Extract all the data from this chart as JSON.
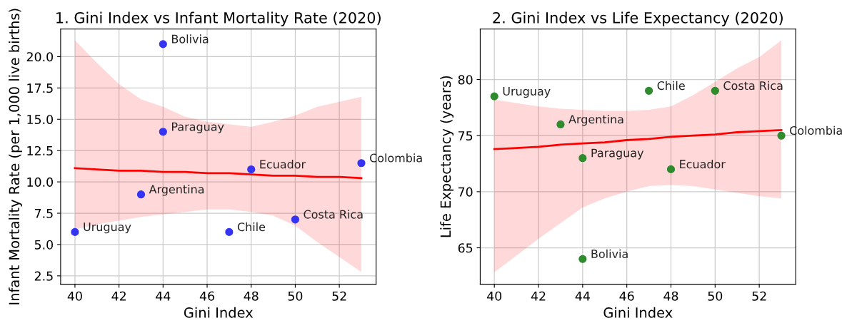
{
  "chart_data": [
    {
      "type": "scatter",
      "title": "1. Gini Index vs Infant Mortality Rate (2020)",
      "xlabel": "Gini Index",
      "ylabel": "Infant Mortality Rate (per 1,000 live births)",
      "xlim": [
        39.35,
        53.67
      ],
      "xticks": [
        40,
        42,
        44,
        46,
        48,
        50,
        52
      ],
      "ylim": [
        1.83,
        22.2
      ],
      "yticks": [
        {
          "value": 2.5,
          "label": "2.5"
        },
        {
          "value": 5,
          "label": "5.0"
        },
        {
          "value": 7.5,
          "label": "7.5"
        },
        {
          "value": 10,
          "label": "10.0"
        },
        {
          "value": 12.5,
          "label": "12.5"
        },
        {
          "value": 15,
          "label": "15.0"
        },
        {
          "value": 17.5,
          "label": "17.5"
        },
        {
          "value": 20,
          "label": "20.0"
        }
      ],
      "grid": true,
      "marker": "circle",
      "series": [
        {
          "color": "#3434f2",
          "x": [
            40,
            43,
            44,
            44,
            47,
            48,
            50,
            53
          ],
          "values": [
            6,
            9,
            21,
            14,
            6,
            11,
            7,
            11.5
          ]
        },
        {
          "type": "line",
          "color": "#ff0000",
          "marker": "none",
          "x": [
            40,
            41,
            42,
            43,
            44,
            45,
            46,
            47,
            48,
            49,
            50,
            51,
            52,
            53
          ],
          "values": [
            11.1,
            11.0,
            10.9,
            10.9,
            10.8,
            10.8,
            10.7,
            10.7,
            10.6,
            10.5,
            10.5,
            10.4,
            10.4,
            10.3
          ],
          "upper": [
            21.3,
            19.5,
            17.8,
            16.6,
            16.0,
            15.2,
            14.8,
            14.6,
            14.4,
            14.8,
            15.3,
            16.0,
            16.4,
            16.8
          ],
          "lower": [
            6.2,
            6.6,
            6.9,
            7.2,
            7.4,
            7.6,
            7.8,
            7.8,
            7.6,
            7.3,
            6.5,
            5.2,
            4.0,
            2.8
          ]
        }
      ],
      "annotations": [
        {
          "text": "Uruguay",
          "x": 40,
          "y": 6
        },
        {
          "text": "Argentina",
          "x": 43,
          "y": 9
        },
        {
          "text": "Bolivia",
          "x": 44,
          "y": 21
        },
        {
          "text": "Paraguay",
          "x": 44,
          "y": 14
        },
        {
          "text": "Chile",
          "x": 47,
          "y": 6
        },
        {
          "text": "Ecuador",
          "x": 48,
          "y": 11
        },
        {
          "text": "Costa Rica",
          "x": 50,
          "y": 7
        },
        {
          "text": "Colombia",
          "x": 53,
          "y": 11.5
        }
      ]
    },
    {
      "type": "scatter",
      "title": "2. Gini Index vs Life Expectancy (2020)",
      "xlabel": "Gini Index",
      "ylabel": "Life Expectancy (years)",
      "xlim": [
        39.36,
        53.65
      ],
      "xticks": [
        40,
        42,
        44,
        46,
        48,
        50,
        52
      ],
      "ylim": [
        61.75,
        84.5
      ],
      "yticks": [
        65,
        70,
        75,
        80
      ],
      "grid": true,
      "marker": "circle",
      "series": [
        {
          "color": "#2e8b2e",
          "x": [
            40,
            43,
            44,
            44,
            47,
            48,
            50,
            53
          ],
          "values": [
            78.5,
            76,
            64,
            73,
            79,
            72,
            79,
            75
          ]
        },
        {
          "type": "line",
          "color": "#ff0000",
          "marker": "none",
          "x": [
            40,
            41,
            42,
            43,
            44,
            45,
            46,
            47,
            48,
            49,
            50,
            51,
            52,
            53
          ],
          "values": [
            73.8,
            73.9,
            74.0,
            74.2,
            74.3,
            74.4,
            74.6,
            74.7,
            74.9,
            75.0,
            75.1,
            75.3,
            75.4,
            75.5
          ],
          "upper": [
            78.2,
            77.9,
            77.6,
            77.4,
            77.3,
            77.2,
            77.2,
            77.3,
            77.6,
            78.6,
            79.8,
            81.0,
            82.0,
            83.5
          ],
          "lower": [
            62.8,
            64.3,
            65.8,
            67.2,
            68.6,
            69.4,
            70.0,
            70.5,
            70.6,
            70.5,
            70.2,
            69.9,
            69.6,
            69.4
          ]
        }
      ],
      "annotations": [
        {
          "text": "Uruguay",
          "x": 40,
          "y": 78.5
        },
        {
          "text": "Argentina",
          "x": 43,
          "y": 76
        },
        {
          "text": "Bolivia",
          "x": 44,
          "y": 64
        },
        {
          "text": "Paraguay",
          "x": 44,
          "y": 73
        },
        {
          "text": "Chile",
          "x": 47,
          "y": 79
        },
        {
          "text": "Ecuador",
          "x": 48,
          "y": 72
        },
        {
          "text": "Costa Rica",
          "x": 50,
          "y": 79
        },
        {
          "text": "Colombia",
          "x": 53,
          "y": 75
        }
      ]
    }
  ]
}
